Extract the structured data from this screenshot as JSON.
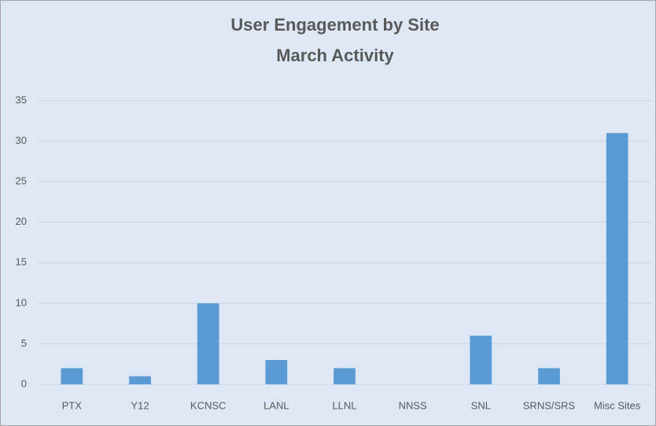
{
  "chart_data": {
    "type": "bar",
    "title": "User Engagement by Site",
    "subtitle": "March Activity",
    "categories": [
      "PTX",
      "Y12",
      "KCNSC",
      "LANL",
      "LLNL",
      "NNSS",
      "SNL",
      "SRNS/SRS",
      "Misc Sites"
    ],
    "values": [
      2,
      1,
      10,
      3,
      2,
      0,
      6,
      2,
      31
    ],
    "color": "#5b9bd5",
    "ylim": [
      0,
      35
    ],
    "yticks": [
      0,
      5,
      10,
      15,
      20,
      25,
      30,
      35
    ],
    "grid": true
  }
}
